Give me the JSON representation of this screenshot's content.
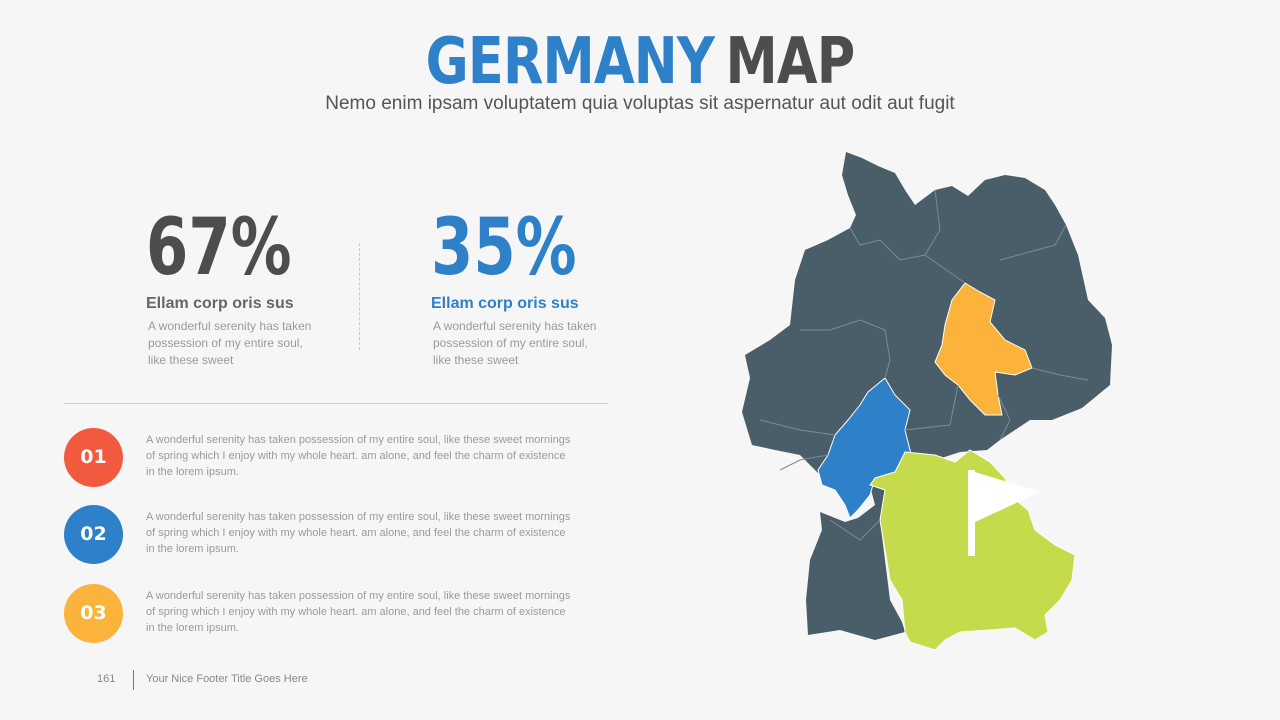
{
  "title": {
    "word1": "GERMANY",
    "word2": "MAP"
  },
  "subtitle": "Nemo enim ipsam voluptatem quia voluptas sit aspernatur aut odit aut fugit",
  "stats": [
    {
      "value": "67%",
      "heading": "Ellam corp oris sus",
      "desc": "A wonderful serenity has taken possession of my entire soul, like these sweet",
      "color": "#4d4d4d",
      "heading_color": "#666666"
    },
    {
      "value": "35%",
      "heading": "Ellam corp oris sus",
      "desc": "A wonderful serenity has taken possession of my entire soul, like these sweet",
      "color": "#2e80c8",
      "heading_color": "#2e80c8"
    }
  ],
  "items": [
    {
      "number": "01",
      "color": "#f15a3f",
      "text": "A wonderful serenity has taken possession of my entire soul, like these sweet mornings of spring which I enjoy with my whole heart. am alone, and feel the charm of existence in the lorem ipsum."
    },
    {
      "number": "02",
      "color": "#2e80c8",
      "text": "A wonderful serenity has taken possession of my entire soul, like these sweet mornings of spring which I enjoy with my whole heart. am alone, and feel the charm of existence in the lorem ipsum."
    },
    {
      "number": "03",
      "color": "#fbb33b",
      "text": "A wonderful serenity has taken possession of my entire soul, like these sweet mornings of spring which I enjoy with my whole heart. am alone, and feel the charm of existence in the lorem ipsum."
    }
  ],
  "footer": {
    "page_number": "161",
    "text": "Your Nice Footer Title Goes Here"
  },
  "map": {
    "base_color": "#4a5e69",
    "highlights": [
      {
        "region": "Saxony-Anhalt",
        "color": "#fbb33b"
      },
      {
        "region": "Hesse",
        "color": "#2e80c8"
      },
      {
        "region": "Bavaria",
        "color": "#c5db4b"
      }
    ],
    "marker_icon": "flag-icon"
  }
}
